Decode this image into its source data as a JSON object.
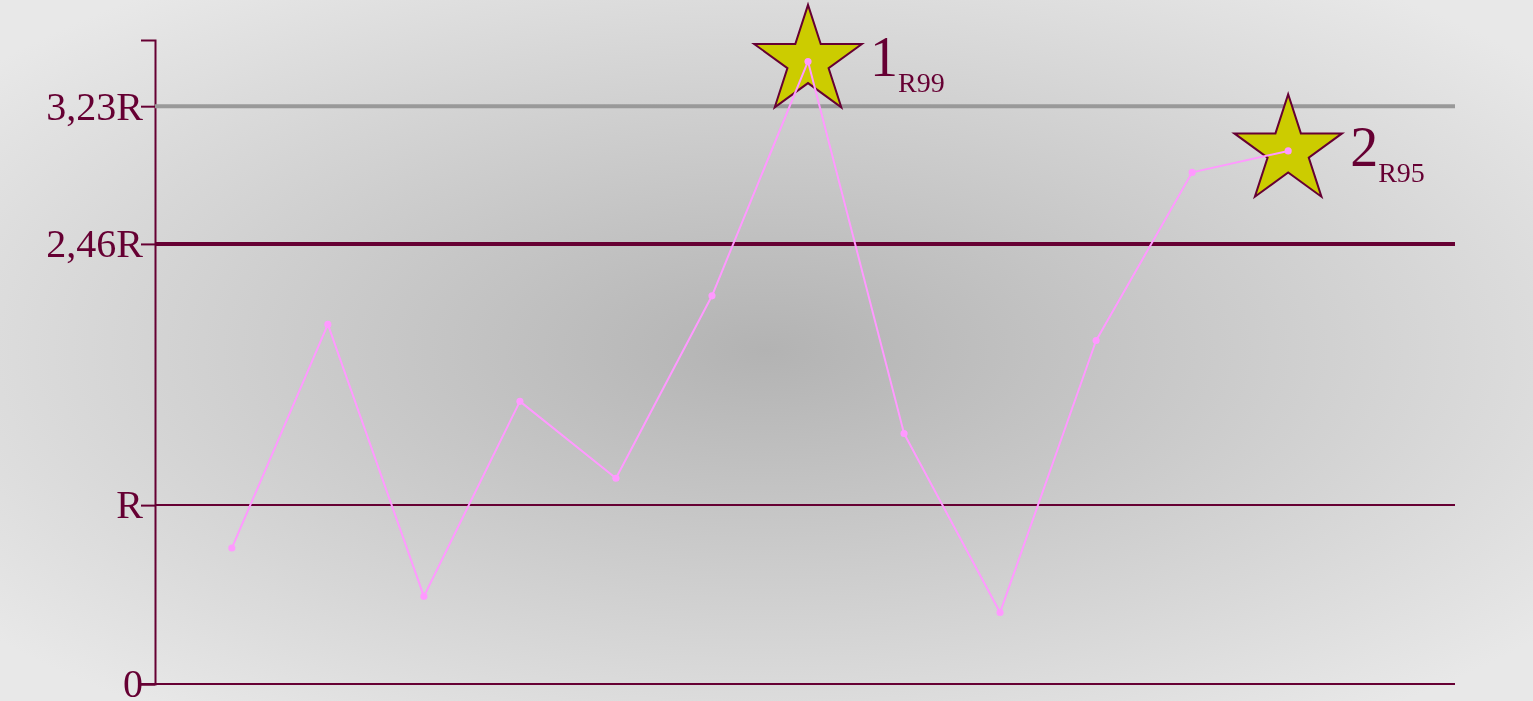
{
  "chart_data": {
    "type": "line",
    "categories": [
      null,
      null,
      null,
      null,
      null,
      null,
      null,
      null,
      null,
      null,
      null,
      null
    ],
    "series": [
      {
        "color": "#ff99ff",
        "marker": "circle",
        "values": [
          0.76,
          2.01,
          0.49,
          1.58,
          1.15,
          2.17,
          3.48,
          1.4,
          0.4,
          1.92,
          2.86,
          2.98
        ]
      },
      {
        "type": "scatter",
        "color": "#cccc00",
        "marker": "star",
        "values": [
          null,
          null,
          null,
          null,
          null,
          null,
          3.48,
          null,
          null,
          null,
          null,
          2.98
        ]
      }
    ],
    "ylim": [
      0,
      3.6
    ],
    "yticks": [
      0,
      {
        "value": 1,
        "label": "R"
      },
      {
        "value": 2.46,
        "label": "2,46R"
      },
      {
        "value": 3.23,
        "label": "3,23R"
      }
    ],
    "ref_lines": [
      {
        "axis": "y",
        "value": 3.23,
        "color": "#999999"
      },
      {
        "axis": "y",
        "value": 2.46,
        "color": "#660033"
      },
      {
        "axis": "y",
        "value": 1,
        "color": "#660033"
      }
    ],
    "annotations": [
      "1$_{R99}$",
      "2$_{R95}$"
    ],
    "grid": false
  }
}
